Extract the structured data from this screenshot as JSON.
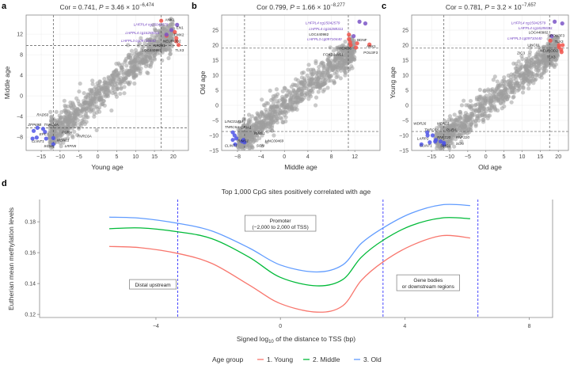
{
  "chart_data": [
    {
      "panel": "a",
      "type": "scatter",
      "title": {
        "pre": "Cor = 0.741, ",
        "p": "P",
        "eq": " = 3.46 × 10",
        "exp": "−6,474"
      },
      "xlabel": "Young age",
      "ylabel": "Middle age",
      "xlim": [
        -19,
        24
      ],
      "ylim": [
        -10.6,
        15.7
      ],
      "xticks": [
        -15,
        -10,
        -5,
        0,
        5,
        10,
        15,
        20
      ],
      "yticks": [
        -8,
        -4,
        0,
        4,
        8,
        12
      ],
      "thresholds": {
        "x": [
          -11.8,
          16.8
        ],
        "y": [
          -6.2,
          9.8
        ]
      },
      "cloud": {
        "slope": 0.62,
        "spread": 1.6,
        "xrange": [
          -13,
          20
        ]
      },
      "points": [
        {
          "x": 16.8,
          "y": 14.6,
          "c": "red"
        },
        {
          "x": 20.4,
          "y": 12.4,
          "c": "red"
        },
        {
          "x": 20.8,
          "y": 11.2,
          "c": "red"
        },
        {
          "x": 20.8,
          "y": 10.6,
          "c": "red"
        },
        {
          "x": 21.4,
          "y": 9.9,
          "c": "red"
        },
        {
          "x": 18.2,
          "y": 11.7,
          "c": "red"
        },
        {
          "x": 21,
          "y": 13.8,
          "c": "purple"
        },
        {
          "x": 19.5,
          "y": 12.8,
          "c": "purple"
        },
        {
          "x": 18.2,
          "y": 11.9,
          "c": "purple"
        },
        {
          "x": -17.3,
          "y": -8.3,
          "c": "blue"
        },
        {
          "x": -16.2,
          "y": -8.1,
          "c": "blue"
        },
        {
          "x": -17,
          "y": -6.8,
          "c": "blue"
        },
        {
          "x": -16,
          "y": -6.2,
          "c": "blue"
        },
        {
          "x": -14.5,
          "y": -6.4,
          "c": "blue"
        },
        {
          "x": -13.7,
          "y": -8.3,
          "c": "blue"
        },
        {
          "x": -14,
          "y": -7,
          "c": "blue"
        },
        {
          "x": -11.8,
          "y": -8.2,
          "c": "blue"
        },
        {
          "x": -11.8,
          "y": -9.4,
          "c": "blue"
        }
      ],
      "labels": [
        {
          "t": "ANK1",
          "x": 17.8,
          "y": 15.0,
          "k": ""
        },
        {
          "t": "LHFPL4 cg15042579",
          "x": 9.5,
          "y": 13.6,
          "k": "p"
        },
        {
          "t": "LHFPL4 cg16288311",
          "x": 7.3,
          "y": 12.0,
          "k": "p"
        },
        {
          "t": "LHFPL3 cg09710440",
          "x": 6.2,
          "y": 10.5,
          "k": "p"
        },
        {
          "t": "EN1",
          "x": 20.8,
          "y": 13.0,
          "k": ""
        },
        {
          "t": "NR2E1",
          "x": 14.8,
          "y": 12.1,
          "k": ""
        },
        {
          "t": "EMX2",
          "x": 20.2,
          "y": 11.6,
          "k": ""
        },
        {
          "t": "NEUROD2",
          "x": 17.3,
          "y": 10.0,
          "k": ""
        },
        {
          "t": "TLX3",
          "x": 20.5,
          "y": 8.6,
          "k": ""
        },
        {
          "t": "LOC440982",
          "x": 11.7,
          "y": 8.6,
          "k": ""
        },
        {
          "t": "RAD50",
          "x": -16.2,
          "y": -3.9,
          "k": "i"
        },
        {
          "t": "ZFP69B",
          "x": -18.5,
          "y": -5.8,
          "k": "i"
        },
        {
          "t": "TNRC6A",
          "x": -14.3,
          "y": -5.8,
          "k": "i"
        },
        {
          "t": "PURA",
          "x": -9.5,
          "y": -7.3,
          "k": "i"
        },
        {
          "t": "EPC1",
          "x": -15.5,
          "y": -7.7,
          "k": "i"
        },
        {
          "t": "TNRC6A",
          "x": -5.5,
          "y": -8.1,
          "k": "i"
        },
        {
          "t": "CLINT1",
          "x": -18.8,
          "y": -9.1,
          "k": "i"
        },
        {
          "t": "MBNL1",
          "x": -10.8,
          "y": -8.8,
          "k": "i"
        },
        {
          "t": "SCN5",
          "x": -14.3,
          "y": -10.0,
          "k": "i"
        },
        {
          "t": "LRFN5",
          "x": -8.8,
          "y": -10.0,
          "k": "i"
        }
      ]
    },
    {
      "panel": "b",
      "type": "scatter",
      "title": {
        "pre": "Cor 0.799, ",
        "p": "P",
        "eq": " = 1.66 × 10",
        "exp": "−8,277"
      },
      "xlabel": "Middle age",
      "ylabel": "Old age",
      "xlim": [
        -10.7,
        16.3
      ],
      "ylim": [
        -15,
        30
      ],
      "xticks": [
        -8,
        -4,
        0,
        4,
        8,
        12
      ],
      "yticks": [
        -15,
        -10,
        -5,
        0,
        5,
        10,
        15,
        20,
        25
      ],
      "thresholds": {
        "x": [
          -6.8,
          10.9
        ],
        "y": [
          -8.7,
          19
        ]
      },
      "cloud": {
        "slope": 1.55,
        "spread": 2.6,
        "xrange": [
          -8,
          12
        ]
      },
      "points": [
        {
          "x": 12.8,
          "y": 27.8,
          "c": "purple"
        },
        {
          "x": 13.8,
          "y": 27.2,
          "c": "purple"
        },
        {
          "x": 11.8,
          "y": 23,
          "c": "purple"
        },
        {
          "x": 11,
          "y": 23.5,
          "c": "red"
        },
        {
          "x": 11,
          "y": 22,
          "c": "red"
        },
        {
          "x": 11.2,
          "y": 21,
          "c": "red"
        },
        {
          "x": 12.4,
          "y": 20.6,
          "c": "red"
        },
        {
          "x": 14.5,
          "y": 20.2,
          "c": "red"
        },
        {
          "x": 11.3,
          "y": 20,
          "c": "red"
        },
        {
          "x": 12.2,
          "y": 19.2,
          "c": "red"
        },
        {
          "x": -8.8,
          "y": -9,
          "c": "blue"
        },
        {
          "x": -8.5,
          "y": -10,
          "c": "blue"
        },
        {
          "x": -8.2,
          "y": -11,
          "c": "blue"
        },
        {
          "x": -8.8,
          "y": -11.5,
          "c": "blue"
        },
        {
          "x": -8.4,
          "y": -13,
          "c": "blue"
        },
        {
          "x": -7.2,
          "y": -12,
          "c": "blue"
        },
        {
          "x": -7,
          "y": -11.5,
          "c": "blue"
        },
        {
          "x": -6.8,
          "y": -12.3,
          "c": "blue"
        }
      ],
      "labels": [
        {
          "t": "LHFPL4 cg15042579",
          "x": 3.6,
          "y": 27.0,
          "k": "p"
        },
        {
          "t": "LHFPL4 cg16288311",
          "x": 4.2,
          "y": 25.8,
          "k": "p"
        },
        {
          "t": "LOC440982",
          "x": 4.2,
          "y": 24.6,
          "k": ""
        },
        {
          "t": "LHFPL3 cg09710440",
          "x": 3.9,
          "y": 21.6,
          "k": "p"
        },
        {
          "t": "BDNF",
          "x": 12.4,
          "y": 21.3,
          "k": ""
        },
        {
          "t": "ANK1",
          "x": 14.0,
          "y": 20.7,
          "k": ""
        },
        {
          "t": "HOXD8",
          "x": 9.3,
          "y": 18.6,
          "k": ""
        },
        {
          "t": "POU3F3",
          "x": 13.5,
          "y": 18.6,
          "k": ""
        },
        {
          "t": "FOXD3-AS1",
          "x": 6.6,
          "y": 16.4,
          "k": ""
        },
        {
          "t": "LINC01414",
          "x": -10.2,
          "y": -5.8,
          "k": "i"
        },
        {
          "t": "TNRC6A",
          "x": -10.2,
          "y": -7.6,
          "k": "i"
        },
        {
          "t": "GRIA1",
          "x": -7.5,
          "y": -7.7,
          "k": "i"
        },
        {
          "t": "RIMS1",
          "x": -5.2,
          "y": -9.8,
          "k": "i"
        },
        {
          "t": "LINC00469",
          "x": -3.3,
          "y": -12.2,
          "k": "i"
        },
        {
          "t": "CLINT1",
          "x": -10.2,
          "y": -14.5,
          "k": "i"
        },
        {
          "t": "RIMS1",
          "x": -8.0,
          "y": -14.5,
          "k": "i"
        },
        {
          "t": "SON",
          "x": -4.8,
          "y": -14.5,
          "k": "i"
        }
      ]
    },
    {
      "panel": "c",
      "type": "scatter",
      "title": {
        "pre": "Cor = 0.781, ",
        "p": "P",
        "eq": " = 3.2 × 10",
        "exp": "−7,657"
      },
      "xlabel": "Old age",
      "ylabel": "Young age",
      "xlim": [
        -20.5,
        22.8
      ],
      "ylim": [
        -15,
        30
      ],
      "xticks": [
        -15,
        -10,
        -5,
        0,
        5,
        10,
        15,
        20
      ],
      "yticks": [
        -15,
        -10,
        -5,
        0,
        5,
        10,
        15,
        20,
        25
      ],
      "thresholds": {
        "x": [
          -11.6,
          17.6
        ],
        "y": [
          -8.7,
          19
        ]
      },
      "cloud": {
        "slope": 0.95,
        "spread": 2.6,
        "xrange": [
          -14,
          20
        ]
      },
      "points": [
        {
          "x": 19,
          "y": 27.8,
          "c": "purple"
        },
        {
          "x": 21.1,
          "y": 27.2,
          "c": "purple"
        },
        {
          "x": 18.2,
          "y": 23,
          "c": "purple"
        },
        {
          "x": 17.8,
          "y": 21.5,
          "c": "red"
        },
        {
          "x": 20.2,
          "y": 20,
          "c": "red"
        },
        {
          "x": 21.2,
          "y": 20,
          "c": "red"
        },
        {
          "x": 20.2,
          "y": 19.3,
          "c": "red"
        },
        {
          "x": 20.8,
          "y": 18.5,
          "c": "red"
        },
        {
          "x": 20.9,
          "y": 17.7,
          "c": "red"
        },
        {
          "x": -17.8,
          "y": -13,
          "c": "blue"
        },
        {
          "x": -16.2,
          "y": -9,
          "c": "blue"
        },
        {
          "x": -16.1,
          "y": -10,
          "c": "blue"
        },
        {
          "x": -14.7,
          "y": -10,
          "c": "blue"
        },
        {
          "x": -15.5,
          "y": -12.3,
          "c": "blue"
        },
        {
          "x": -14,
          "y": -12,
          "c": "blue"
        },
        {
          "x": -13.8,
          "y": -11.5,
          "c": "blue"
        },
        {
          "x": -12.5,
          "y": -12,
          "c": "blue"
        },
        {
          "x": -11.6,
          "y": -12.5,
          "c": "blue"
        },
        {
          "x": -11.6,
          "y": -13,
          "c": "blue"
        }
      ],
      "labels": [
        {
          "t": "LHFPL4 cg15042579",
          "x": 7.0,
          "y": 27.0,
          "k": "p"
        },
        {
          "t": "LHFPL4 cg16288311",
          "x": 9.0,
          "y": 26.0,
          "k": "p"
        },
        {
          "t": "LOC440982",
          "x": 11.8,
          "y": 24.5,
          "k": ""
        },
        {
          "t": "LHFPL3 cg09710440",
          "x": 6.0,
          "y": 21.8,
          "k": "p"
        },
        {
          "t": "POU3F3",
          "x": 17.8,
          "y": 22.8,
          "k": ""
        },
        {
          "t": "TLX3",
          "x": 20.3,
          "y": 20.8,
          "k": ""
        },
        {
          "t": "LINC01",
          "x": 11.5,
          "y": 19.6,
          "k": ""
        },
        {
          "t": "ZIC3",
          "x": 8.6,
          "y": 17.0,
          "k": ""
        },
        {
          "t": "NEUROD2",
          "x": 15.0,
          "y": 17.8,
          "k": ""
        },
        {
          "t": "TLX3",
          "x": 16.8,
          "y": 15.6,
          "k": ""
        },
        {
          "t": "WDR26",
          "x": -20.0,
          "y": -6.5,
          "k": "i"
        },
        {
          "t": "MBNL1",
          "x": -13.5,
          "y": -6.5,
          "k": "i"
        },
        {
          "t": "TNRC6A",
          "x": -17.0,
          "y": -8.6,
          "k": "i"
        },
        {
          "t": "PURA",
          "x": -10.9,
          "y": -8.6,
          "k": "i"
        },
        {
          "t": "LARP1",
          "x": -19.0,
          "y": -11.5,
          "k": "i"
        },
        {
          "t": "RNF220",
          "x": -13.5,
          "y": -11.0,
          "k": "i"
        },
        {
          "t": "RNF220",
          "x": -8.3,
          "y": -11.0,
          "k": "i"
        },
        {
          "t": "SON",
          "x": -8.3,
          "y": -13.2,
          "k": "i"
        },
        {
          "t": "CLINT1",
          "x": -18.3,
          "y": -14.5,
          "k": "i"
        },
        {
          "t": "SMG1",
          "x": -12.6,
          "y": -14.5,
          "k": "i"
        }
      ]
    },
    {
      "panel": "d",
      "type": "line",
      "title": "Top 1,000 CpG sites positively correlated with age",
      "xlabel": {
        "pre": "Signed log",
        "sub": "10",
        "post": " of the distance to TSS (bp)"
      },
      "ylabel": "Eutherian mean methylation levels",
      "xlim": [
        -7.74,
        8.75
      ],
      "ylim": [
        0.118,
        0.1944
      ],
      "xticks": [
        -4,
        0,
        4,
        8
      ],
      "yticks": [
        0.12,
        0.14,
        0.16,
        0.18
      ],
      "vlines": [
        -3.3,
        3.3,
        6.35
      ],
      "annotations": [
        {
          "lines": [
            "Distal upstream"
          ],
          "x": -4.1,
          "y": 0.1395
        },
        {
          "lines": [
            "Promoter",
            "(−2,000 to 2,000 of TSS)"
          ],
          "x": 0,
          "y": 0.179
        },
        {
          "lines": [
            "Gene bodies",
            "or downstream regions"
          ],
          "x": 4.75,
          "y": 0.1405
        }
      ],
      "legend": {
        "title": "Age group",
        "placement": "bottom"
      },
      "x": [
        -5.5,
        -4.5,
        -3.3,
        -2.2,
        -1,
        0,
        1.17,
        2,
        2.6,
        3.3,
        4.2,
        5.2,
        6.1
      ],
      "series": [
        {
          "name": "1. Young",
          "color": "#f8766d",
          "values": [
            0.164,
            0.1632,
            0.1595,
            0.153,
            0.139,
            0.127,
            0.1215,
            0.1255,
            0.142,
            0.154,
            0.1645,
            0.171,
            0.1695
          ]
        },
        {
          "name": "2. Middle",
          "color": "#00ba38",
          "values": [
            0.1755,
            0.176,
            0.1735,
            0.169,
            0.157,
            0.144,
            0.1385,
            0.1425,
            0.157,
            0.168,
            0.1775,
            0.1825,
            0.182
          ]
        },
        {
          "name": "3. Old",
          "color": "#619cff",
          "values": [
            0.183,
            0.1823,
            0.179,
            0.174,
            0.163,
            0.152,
            0.1475,
            0.152,
            0.166,
            0.176,
            0.1855,
            0.191,
            0.1905
          ]
        }
      ]
    }
  ],
  "colors": {
    "red": "#f0524a",
    "purple": "#7b55c7",
    "blue": "#4f55e8",
    "cloud": "#9e9e9e"
  }
}
